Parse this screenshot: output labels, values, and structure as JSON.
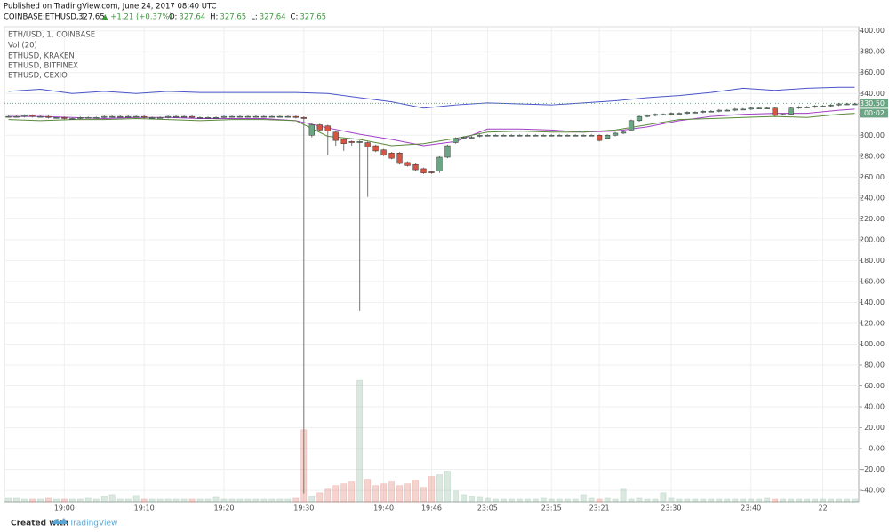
{
  "header": {
    "published": "Published on TradingView.com, June 24, 2017 08:40 UTC",
    "symbol": "COINBASE:ETHUSD, 1",
    "last": "327.65",
    "change": "▲ +1.21 (+0.37%)",
    "quote": [
      {
        "label": "O:",
        "value": "327.64"
      },
      {
        "label": "H:",
        "value": "327.65"
      },
      {
        "label": "L:",
        "value": "327.64"
      },
      {
        "label": "C:",
        "value": "327.65"
      }
    ]
  },
  "footer": {
    "created": "Created with",
    "brand": "TradingView"
  },
  "chart_data": {
    "type": "candlestick",
    "title": "ETH/USD, 1, COINBASE",
    "volume_name": "Vol (20)",
    "up_color": "#6ba583",
    "down_color": "#d75442",
    "categories": [
      null,
      null,
      null,
      null,
      null,
      null,
      null,
      "19:00",
      null,
      null,
      null,
      null,
      null,
      null,
      null,
      null,
      null,
      "19:10",
      null,
      null,
      null,
      null,
      null,
      null,
      null,
      null,
      null,
      "19:20",
      null,
      null,
      null,
      null,
      null,
      null,
      null,
      null,
      null,
      "19:30",
      null,
      null,
      null,
      null,
      null,
      null,
      null,
      null,
      null,
      "19:40",
      null,
      null,
      null,
      null,
      null,
      "19:46",
      null,
      null,
      null,
      null,
      null,
      null,
      "23:05",
      null,
      null,
      null,
      null,
      null,
      null,
      null,
      "23:15",
      null,
      null,
      null,
      null,
      null,
      "23:21",
      null,
      null,
      null,
      null,
      null,
      null,
      null,
      null,
      "23:30",
      null,
      null,
      null,
      null,
      null,
      null,
      null,
      null,
      null,
      "23:40",
      null,
      null,
      null,
      null,
      null,
      null,
      null,
      null,
      "22",
      null,
      null,
      null,
      null
    ],
    "open": [
      318,
      318,
      318,
      319,
      318,
      318,
      317,
      317,
      316,
      316,
      317,
      317,
      317,
      318,
      318,
      318,
      318,
      318,
      317,
      317,
      317,
      318,
      318,
      318,
      317,
      317,
      317,
      317,
      318,
      318,
      318,
      318,
      318,
      318,
      318,
      318,
      318,
      317,
      300,
      310,
      309,
      303,
      296,
      294,
      293,
      293,
      290,
      286,
      283,
      283,
      274,
      272,
      268,
      265,
      266,
      279,
      293,
      297,
      298,
      299,
      300,
      300,
      300,
      300,
      300,
      300,
      300,
      300,
      300,
      300,
      300,
      300,
      300,
      300,
      300,
      297,
      300,
      302,
      305,
      314,
      318,
      319,
      320,
      320,
      321,
      321,
      322,
      322,
      323,
      323,
      324,
      324,
      325,
      325,
      326,
      326,
      326,
      320,
      320,
      326,
      327,
      327,
      328,
      328,
      329,
      330,
      330
    ],
    "high": [
      319,
      319,
      320,
      320,
      319,
      319,
      318,
      318,
      317,
      318,
      318,
      318,
      319,
      319,
      319,
      319,
      319,
      319,
      318,
      318,
      319,
      319,
      319,
      319,
      318,
      318,
      318,
      319,
      319,
      319,
      319,
      319,
      319,
      319,
      319,
      319,
      319,
      318,
      312,
      311,
      310,
      304,
      297,
      295,
      295,
      294,
      291,
      287,
      284,
      284,
      275,
      273,
      269,
      266,
      280,
      291,
      298,
      299,
      300,
      301,
      301,
      301,
      301,
      301,
      301,
      301,
      301,
      301,
      301,
      301,
      301,
      301,
      301,
      301,
      301,
      301,
      303,
      304,
      315,
      319,
      320,
      321,
      321,
      322,
      322,
      323,
      323,
      324,
      324,
      325,
      325,
      326,
      326,
      327,
      327,
      327,
      327,
      321,
      327,
      328,
      328,
      329,
      329,
      330,
      331,
      331,
      331
    ],
    "low": [
      317,
      317,
      317,
      317,
      317,
      316,
      316,
      315,
      315,
      315,
      316,
      316,
      316,
      317,
      317,
      317,
      317,
      316,
      316,
      316,
      316,
      317,
      317,
      316,
      316,
      316,
      316,
      316,
      317,
      317,
      317,
      317,
      317,
      317,
      317,
      317,
      316,
      -43,
      298,
      304,
      281,
      290,
      285,
      290,
      132,
      241,
      284,
      280,
      277,
      272,
      270,
      266,
      263,
      263,
      264,
      278,
      292,
      296,
      297,
      298,
      299,
      299,
      299,
      299,
      299,
      299,
      299,
      299,
      299,
      299,
      299,
      299,
      299,
      299,
      294,
      296,
      299,
      301,
      304,
      313,
      317,
      318,
      319,
      319,
      320,
      320,
      321,
      321,
      322,
      322,
      323,
      323,
      324,
      324,
      325,
      325,
      318,
      319,
      319,
      325,
      326,
      326,
      327,
      327,
      328,
      329,
      329
    ],
    "close": [
      318,
      318,
      319,
      318,
      318,
      317,
      317,
      316,
      316,
      317,
      317,
      317,
      318,
      318,
      318,
      318,
      318,
      317,
      317,
      317,
      318,
      318,
      318,
      317,
      317,
      317,
      317,
      318,
      318,
      318,
      318,
      318,
      318,
      318,
      318,
      318,
      317,
      316,
      310,
      305,
      304,
      295,
      292,
      293,
      294,
      289,
      285,
      281,
      278,
      273,
      271,
      267,
      264,
      264,
      279,
      290,
      297,
      298,
      298,
      300,
      300,
      300,
      300,
      300,
      300,
      300,
      300,
      300,
      300,
      300,
      300,
      300,
      300,
      300,
      295,
      300,
      302,
      303,
      314,
      318,
      319,
      320,
      320,
      321,
      321,
      322,
      322,
      323,
      323,
      324,
      324,
      325,
      325,
      326,
      326,
      326,
      319,
      320,
      326,
      327,
      327,
      328,
      328,
      329,
      330,
      330,
      330
    ],
    "volume": [
      4,
      4,
      3,
      3,
      3,
      4,
      3,
      3,
      3,
      3,
      4,
      3,
      6,
      8,
      3,
      3,
      7,
      3,
      3,
      3,
      3,
      3,
      3,
      3,
      3,
      3,
      5,
      3,
      3,
      3,
      3,
      3,
      3,
      3,
      3,
      3,
      4,
      80,
      6,
      10,
      14,
      18,
      20,
      22,
      135,
      25,
      18,
      20,
      22,
      18,
      20,
      24,
      16,
      28,
      30,
      34,
      12,
      8,
      6,
      5,
      4,
      3,
      3,
      3,
      3,
      3,
      3,
      4,
      3,
      3,
      3,
      3,
      8,
      4,
      3,
      4,
      3,
      14,
      3,
      4,
      3,
      3,
      10,
      4,
      3,
      3,
      3,
      3,
      3,
      3,
      3,
      3,
      3,
      3,
      3,
      4,
      3,
      3,
      3,
      3,
      3,
      3,
      3,
      3,
      3,
      3,
      3
    ],
    "series": [
      {
        "name": "ETHUSD, KRAKEN",
        "color": "#4a55c8",
        "x": [
          0,
          4,
          8,
          12,
          16,
          20,
          24,
          28,
          32,
          36,
          40,
          44,
          48,
          52,
          56,
          60,
          64,
          68,
          72,
          76,
          80,
          84,
          88,
          92,
          96,
          100,
          104,
          106
        ],
        "values": [
          342,
          344,
          340,
          342,
          340,
          342,
          341,
          341,
          341,
          341,
          340,
          336,
          332,
          326,
          329,
          331,
          330,
          329,
          331,
          333,
          336,
          338,
          341,
          345,
          343,
          345,
          346,
          346
        ]
      },
      {
        "name": "ETHUSD, BITFINEX",
        "color": "#a23fc4",
        "x": [
          0,
          4,
          8,
          12,
          16,
          20,
          24,
          28,
          32,
          36,
          40,
          44,
          48,
          52,
          56,
          60,
          64,
          68,
          72,
          76,
          80,
          84,
          88,
          92,
          96,
          100,
          104,
          106
        ],
        "values": [
          318,
          318,
          317,
          316,
          317,
          317,
          316,
          316,
          316,
          314,
          307,
          301,
          296,
          290,
          294,
          306,
          306,
          305,
          303,
          304,
          308,
          314,
          318,
          320,
          321,
          321,
          324,
          325
        ]
      },
      {
        "name": "ETHUSD, CEXIO",
        "color": "#5a8a3a",
        "x": [
          0,
          4,
          8,
          12,
          16,
          20,
          24,
          28,
          32,
          36,
          40,
          44,
          48,
          52,
          56,
          60,
          64,
          68,
          72,
          76,
          80,
          84,
          88,
          92,
          96,
          100,
          104,
          106
        ],
        "values": [
          315,
          314,
          315,
          315,
          316,
          315,
          314,
          315,
          315,
          314,
          299,
          296,
          290,
          292,
          297,
          303,
          304,
          303,
          303,
          305,
          310,
          315,
          316,
          317,
          318,
          317,
          320,
          321
        ]
      }
    ],
    "price_tag": {
      "value": 330.5,
      "label": "330.50"
    },
    "countdown": "00:02",
    "ylim": [
      -51,
      404
    ],
    "yticks": [
      {
        "value": 400,
        "label": "400.00"
      },
      {
        "value": 380,
        "label": "380.00"
      },
      {
        "value": 360,
        "label": "360.00"
      },
      {
        "value": 340,
        "label": "340.00"
      },
      {
        "value": 320,
        "label": "320.00"
      },
      {
        "value": 300,
        "label": "300.00"
      },
      {
        "value": 280,
        "label": "280.00"
      },
      {
        "value": 260,
        "label": "260.00"
      },
      {
        "value": 240,
        "label": "240.00"
      },
      {
        "value": 220,
        "label": "220.00"
      },
      {
        "value": 200,
        "label": "200.00"
      },
      {
        "value": 180,
        "label": "180.00"
      },
      {
        "value": 160,
        "label": "160.00"
      },
      {
        "value": 140,
        "label": "140.00"
      },
      {
        "value": 120,
        "label": "120.00"
      },
      {
        "value": 100,
        "label": "100.00"
      },
      {
        "value": 80,
        "label": "80.00"
      },
      {
        "value": 60,
        "label": "60.00"
      },
      {
        "value": 40,
        "label": "40.00"
      },
      {
        "value": 20,
        "label": "20.00"
      },
      {
        "value": 0,
        "label": "0.00"
      },
      {
        "value": -20,
        "label": "-20.00"
      },
      {
        "value": -40,
        "label": "-40.00"
      }
    ],
    "grid": true
  }
}
